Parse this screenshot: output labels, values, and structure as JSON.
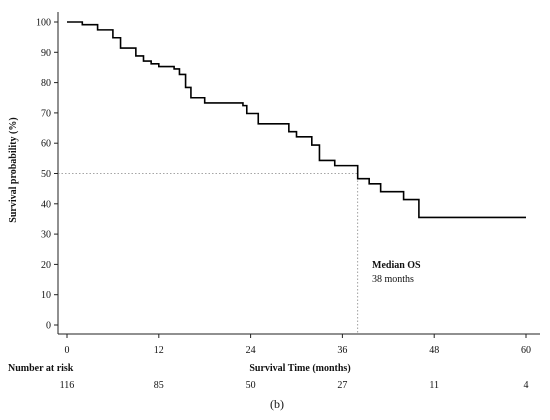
{
  "chart_data": {
    "type": "line",
    "title": "",
    "panel_label": "(b)",
    "xlabel": "Survival Time (months)",
    "ylabel": "Survival probability (%)",
    "xlim": [
      0,
      60
    ],
    "ylim": [
      0,
      100
    ],
    "x_ticks": [
      0,
      12,
      24,
      36,
      48,
      60
    ],
    "y_ticks": [
      0,
      10,
      20,
      30,
      40,
      50,
      60,
      70,
      80,
      90,
      100
    ],
    "grid": false,
    "series": [
      {
        "name": "",
        "color": "#000000",
        "steps": [
          [
            0,
            100
          ],
          [
            2,
            99.1
          ],
          [
            4,
            97.4
          ],
          [
            6,
            94.8
          ],
          [
            7,
            91.4
          ],
          [
            9,
            88.8
          ],
          [
            10,
            87.1
          ],
          [
            11,
            86.2
          ],
          [
            12,
            85.3
          ],
          [
            14,
            84.5
          ],
          [
            14.7,
            82.7
          ],
          [
            15.5,
            78.4
          ],
          [
            16.2,
            75.0
          ],
          [
            18,
            73.3
          ],
          [
            23,
            72.4
          ],
          [
            23.5,
            69.8
          ],
          [
            25,
            66.4
          ],
          [
            29,
            63.8
          ],
          [
            30,
            62.1
          ],
          [
            32,
            59.4
          ],
          [
            33,
            54.3
          ],
          [
            35,
            52.6
          ],
          [
            38,
            48.3
          ],
          [
            39.5,
            46.6
          ],
          [
            41,
            44.0
          ],
          [
            44,
            41.4
          ],
          [
            46,
            35.5
          ],
          [
            60,
            35.5
          ]
        ]
      }
    ],
    "median": {
      "x": 38,
      "y": 50
    },
    "annotation": {
      "title": "Median OS",
      "text": "38 months"
    },
    "risk_table": {
      "label": "Number at risk",
      "times": [
        0,
        12,
        24,
        36,
        48,
        60
      ],
      "values": [
        "116",
        "85",
        "50",
        "27",
        "11",
        "4"
      ]
    }
  }
}
